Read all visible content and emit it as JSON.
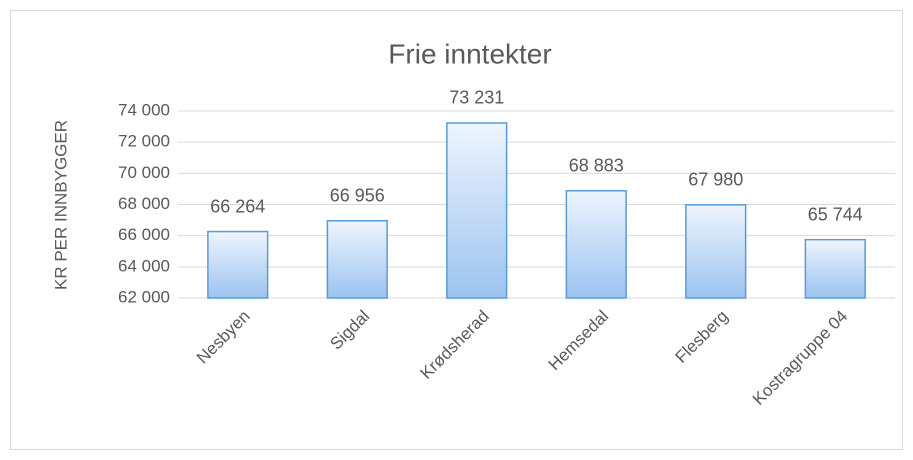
{
  "chart_data": {
    "type": "bar",
    "title": "Frie inntekter",
    "y_label": "KR PER INNBYGGER",
    "categories": [
      "Nesbyen",
      "Sigdal",
      "Krødsherad",
      "Hemsedal",
      "Flesberg",
      "Kostragruppe 04"
    ],
    "values": [
      66264,
      66956,
      73231,
      68883,
      67980,
      65744
    ],
    "value_labels": [
      "66 264",
      "66 956",
      "73 231",
      "68 883",
      "67 980",
      "65 744"
    ],
    "color": "#5b9bd5",
    "ylim": [
      62000,
      74000
    ],
    "yticks": [
      {
        "value": 62000,
        "label": "62 000"
      },
      {
        "value": 64000,
        "label": "64 000"
      },
      {
        "value": 66000,
        "label": "66 000"
      },
      {
        "value": 68000,
        "label": "68 000"
      },
      {
        "value": 70000,
        "label": "70 000"
      },
      {
        "value": 72000,
        "label": "72 000"
      },
      {
        "value": 74000,
        "label": "74 000"
      }
    ],
    "grid": true
  }
}
